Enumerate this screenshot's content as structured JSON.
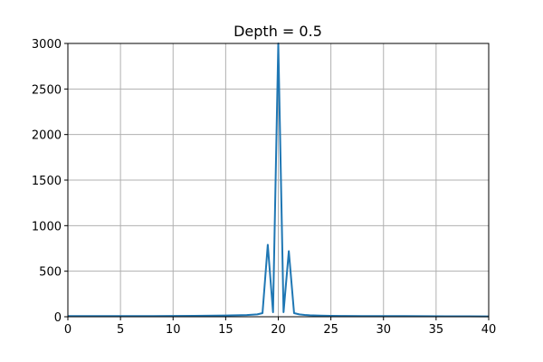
{
  "chart_data": {
    "type": "line",
    "title": "Depth = 0.5",
    "xlabel": "",
    "ylabel": "",
    "xlim": [
      0,
      40
    ],
    "ylim": [
      0,
      3000
    ],
    "xticks": [
      0,
      5,
      10,
      15,
      20,
      25,
      30,
      35,
      40
    ],
    "yticks": [
      0,
      500,
      1000,
      1500,
      2000,
      2500,
      3000
    ],
    "grid": true,
    "series": [
      {
        "color": "#1f77b4",
        "x": [
          0,
          2,
          4,
          6,
          8,
          10,
          12,
          14,
          15,
          16,
          17,
          17.5,
          18,
          18.5,
          19,
          19.5,
          20,
          20.5,
          21,
          21.5,
          22,
          22.5,
          23,
          24,
          25,
          26,
          28,
          30,
          32,
          34,
          36,
          38,
          40
        ],
        "y": [
          8,
          8,
          8,
          8,
          8,
          9,
          10,
          12,
          14,
          16,
          19,
          22,
          26,
          40,
          790,
          50,
          3000,
          50,
          720,
          40,
          26,
          20,
          16,
          12,
          10,
          9,
          8,
          8,
          7,
          6,
          5,
          5,
          4
        ]
      }
    ]
  }
}
